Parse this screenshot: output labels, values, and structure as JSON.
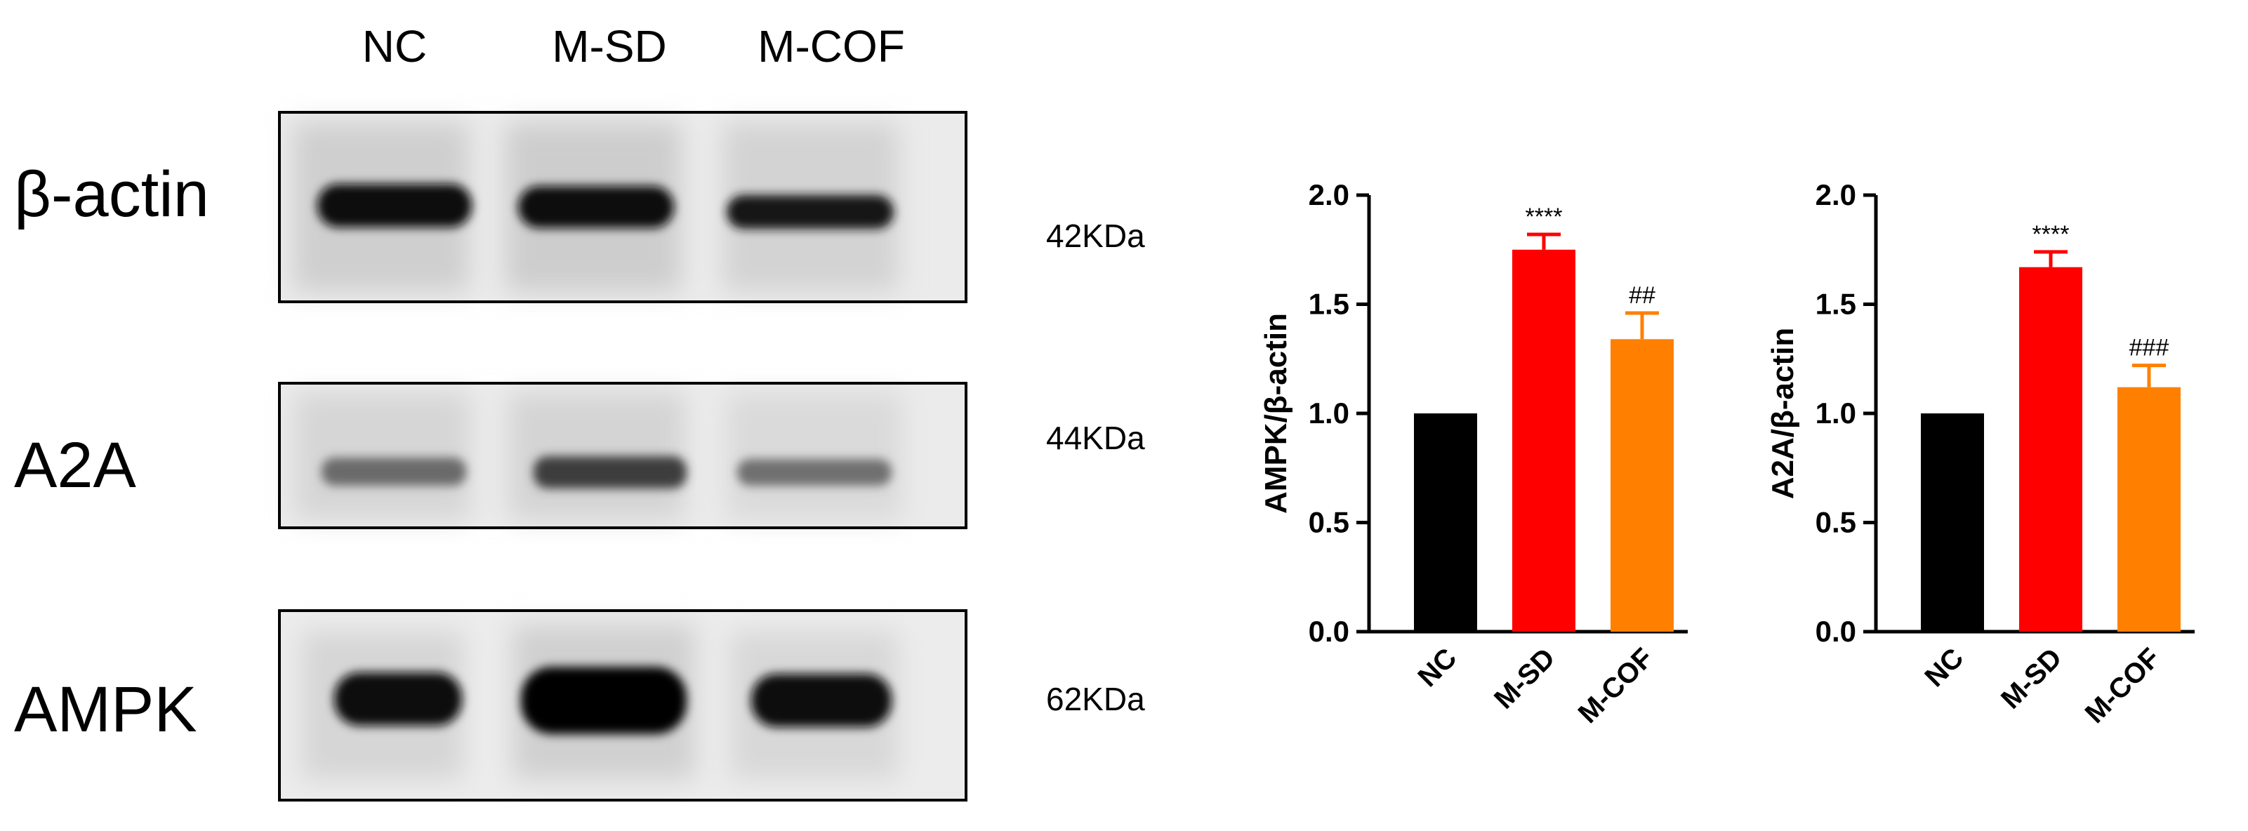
{
  "blot": {
    "lanes": [
      "NC",
      "M-SD",
      "M-COF"
    ],
    "rows": [
      {
        "protein": "β-actin",
        "size": "42KDa",
        "intensity": [
          0.95,
          0.93,
          0.85
        ],
        "spread": [
          1.0,
          1.0,
          0.95
        ]
      },
      {
        "protein": "A2A",
        "size": "44KDa",
        "intensity": [
          0.5,
          0.7,
          0.45
        ],
        "spread": [
          0.9,
          1.0,
          0.9
        ]
      },
      {
        "protein": "AMPK",
        "size": "62KDa",
        "intensity": [
          0.9,
          1.0,
          0.88
        ],
        "spread": [
          0.85,
          1.1,
          0.9
        ]
      }
    ]
  },
  "chart_data": [
    {
      "type": "bar",
      "categories": [
        "NC",
        "M-SD",
        "M-COF"
      ],
      "values": [
        1.0,
        1.75,
        1.34
      ],
      "errors": [
        0,
        0.07,
        0.12
      ],
      "annotations": [
        "",
        "****",
        "##"
      ],
      "colors": [
        "#000000",
        "#ff0000",
        "#ff8000"
      ],
      "xlabel": "",
      "ylabel": "AMPK/β-actin",
      "ylim": [
        0,
        2.0
      ],
      "yticks": [
        "0.0",
        "0.5",
        "1.0",
        "1.5",
        "2.0"
      ]
    },
    {
      "type": "bar",
      "categories": [
        "NC",
        "M-SD",
        "M-COF"
      ],
      "values": [
        1.0,
        1.67,
        1.12
      ],
      "errors": [
        0,
        0.07,
        0.1
      ],
      "annotations": [
        "",
        "****",
        "###"
      ],
      "colors": [
        "#000000",
        "#ff0000",
        "#ff8000"
      ],
      "xlabel": "",
      "ylabel": "A2A/β-actin",
      "ylim": [
        0,
        2.0
      ],
      "yticks": [
        "0.0",
        "0.5",
        "1.0",
        "1.5",
        "2.0"
      ]
    }
  ]
}
